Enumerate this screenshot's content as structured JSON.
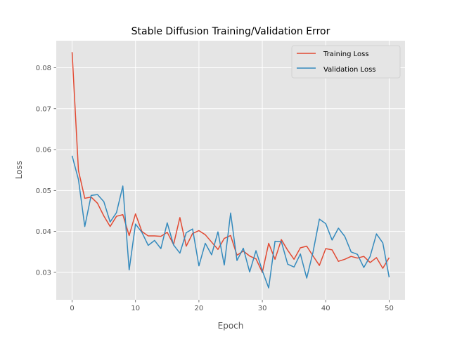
{
  "chart_data": {
    "type": "line",
    "title": "Stable Diffusion Training/Validation Error",
    "xlabel": "Epoch",
    "ylabel": "Loss",
    "xlim": [
      -2.5,
      52.5
    ],
    "ylim": [
      0.0233,
      0.0866
    ],
    "xticks": [
      0,
      10,
      20,
      30,
      40,
      50
    ],
    "yticks": [
      0.03,
      0.04,
      0.05,
      0.06,
      0.07,
      0.08
    ],
    "grid": true,
    "legend_position": "top-right",
    "x": [
      0,
      1,
      2,
      3,
      4,
      5,
      6,
      7,
      8,
      9,
      10,
      11,
      12,
      13,
      14,
      15,
      16,
      17,
      18,
      19,
      20,
      21,
      22,
      23,
      24,
      25,
      26,
      27,
      28,
      29,
      30,
      31,
      32,
      33,
      34,
      35,
      36,
      37,
      38,
      39,
      40,
      41,
      42,
      43,
      44,
      45,
      46,
      47,
      48,
      49,
      50
    ],
    "series": [
      {
        "name": "Training Loss",
        "color": "#E24A33",
        "values": [
          0.0838,
          0.0549,
          0.0481,
          0.0484,
          0.0469,
          0.0438,
          0.0412,
          0.0437,
          0.0441,
          0.039,
          0.0443,
          0.04,
          0.0389,
          0.0389,
          0.0388,
          0.0398,
          0.0368,
          0.0434,
          0.0364,
          0.0395,
          0.0402,
          0.0392,
          0.0374,
          0.0356,
          0.0383,
          0.039,
          0.0342,
          0.0352,
          0.034,
          0.0333,
          0.03,
          0.0371,
          0.0332,
          0.038,
          0.0354,
          0.0332,
          0.036,
          0.0364,
          0.034,
          0.0317,
          0.0358,
          0.0355,
          0.0327,
          0.0332,
          0.0339,
          0.0335,
          0.0339,
          0.0324,
          0.0336,
          0.031,
          0.0336
        ]
      },
      {
        "name": "Validation Loss",
        "color": "#348ABD",
        "values": [
          0.0585,
          0.0527,
          0.0412,
          0.0488,
          0.049,
          0.0473,
          0.0423,
          0.0446,
          0.0511,
          0.0306,
          0.0418,
          0.0398,
          0.0366,
          0.0378,
          0.0358,
          0.0421,
          0.0367,
          0.0347,
          0.0397,
          0.0406,
          0.0316,
          0.0371,
          0.0343,
          0.0399,
          0.0318,
          0.0445,
          0.0329,
          0.0359,
          0.0301,
          0.0353,
          0.0304,
          0.0262,
          0.0376,
          0.0375,
          0.032,
          0.0313,
          0.0345,
          0.0286,
          0.035,
          0.043,
          0.0419,
          0.0379,
          0.0408,
          0.0388,
          0.035,
          0.0344,
          0.0312,
          0.0339,
          0.0394,
          0.0372,
          0.0288
        ]
      }
    ]
  }
}
